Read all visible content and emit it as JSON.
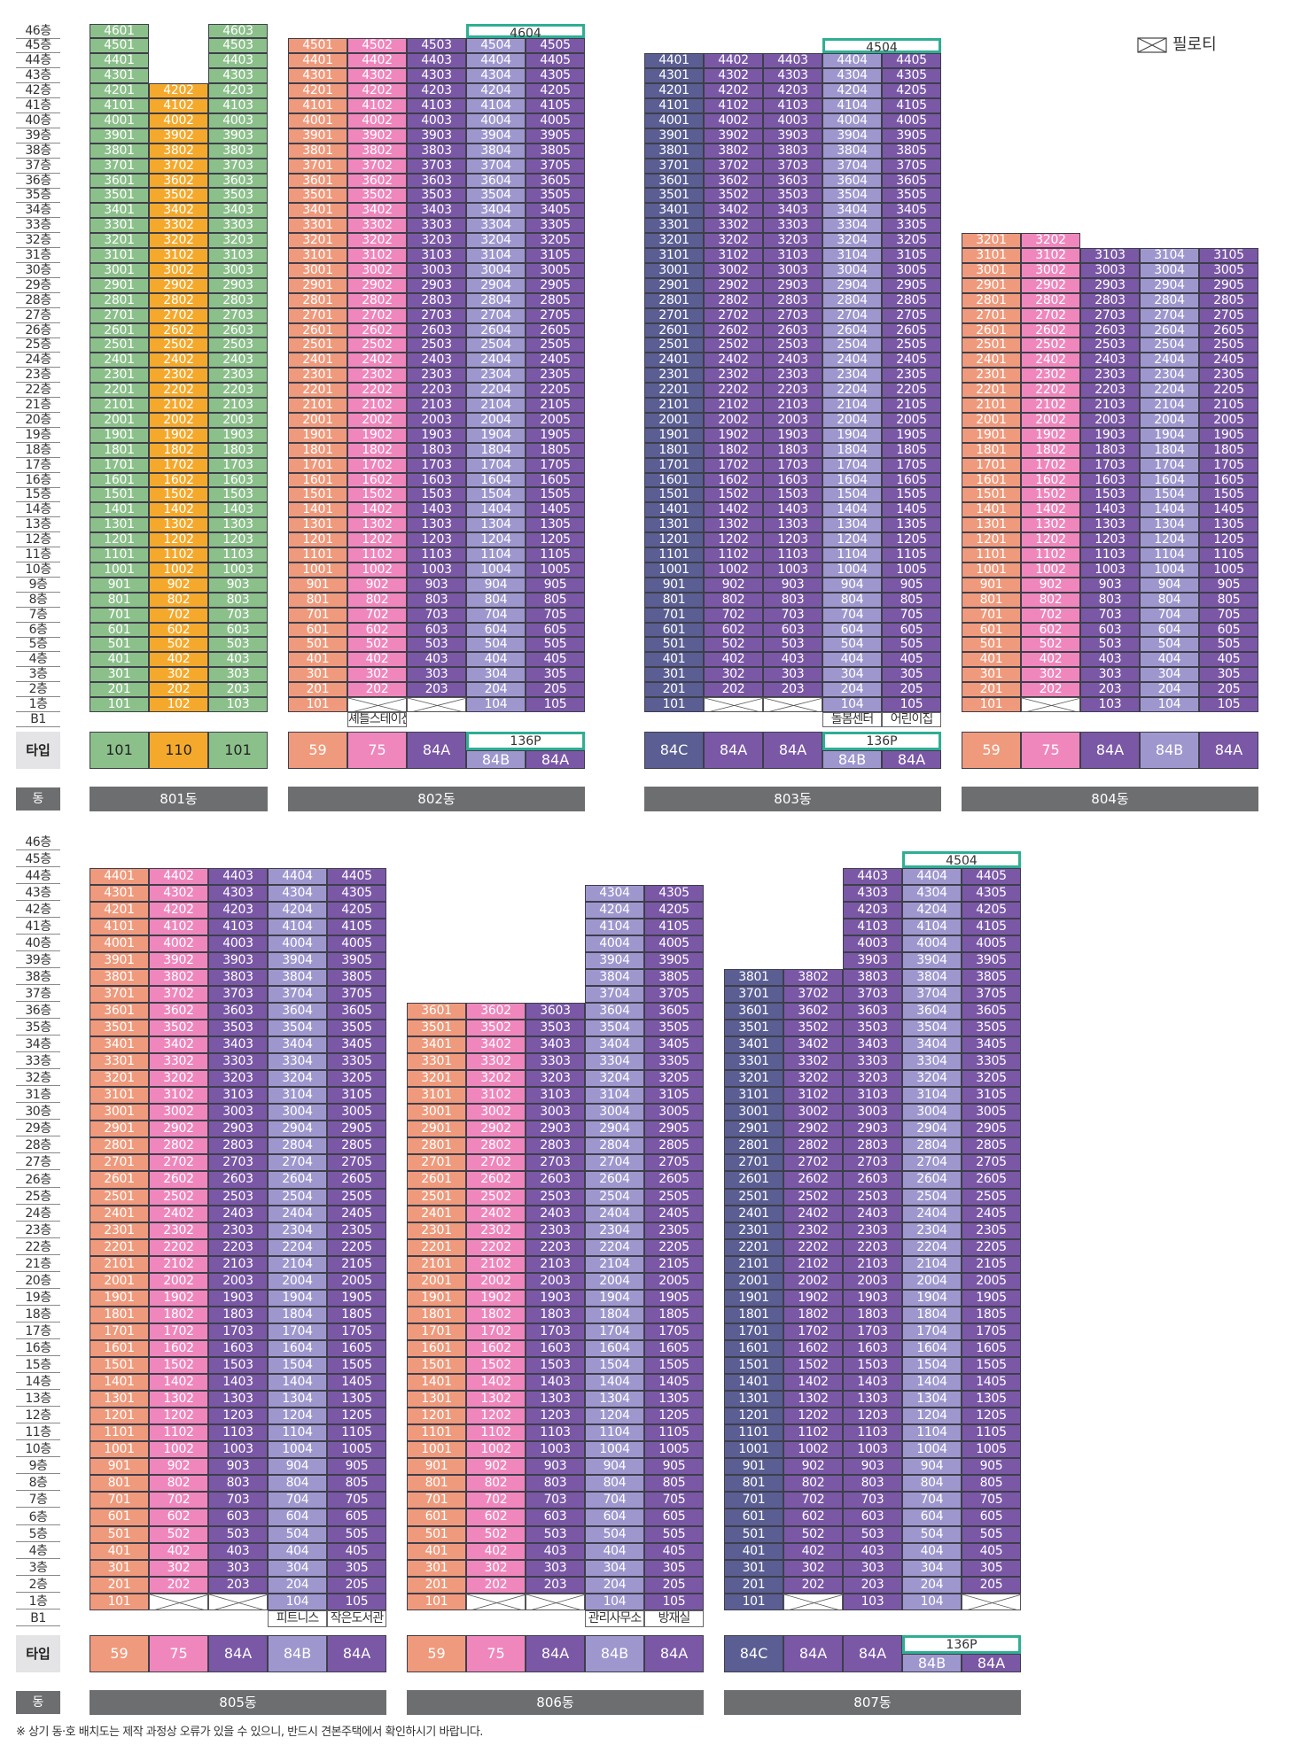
{
  "legend": {
    "pilotis_label": "필로티",
    "icon": "pilotis-x-icon"
  },
  "labels": {
    "type_row": "타입",
    "dong_row": "동",
    "b1": "B1",
    "floor_suffix": "층"
  },
  "footnote": "※ 상기 동·호 배치도는 제작 과정상 오류가 있을 수 있으니, 반드시 견본주택에서 확인하시기 바랍니다.",
  "colors": {
    "type_101": "#8cc08b",
    "type_110": "#f5a92c",
    "type_59": "#ef9a7c",
    "type_75": "#ef87bd",
    "type_84A": "#7a58a6",
    "type_84B": "#9e97ce",
    "type_84C": "#5a5e92",
    "unit_59": "#ef9a7c",
    "unit_75": "#ef87bd",
    "unit_84A": "#7a58a6",
    "unit_84B": "#9e97ce",
    "unit_84C": "#5a5e92",
    "accent_teal": "#2fae93",
    "dong_bar": "#6d6e70"
  },
  "buildings": [
    {
      "name": "801동",
      "section": 1,
      "columns": [
        {
          "type": "101",
          "line": 1,
          "top": 46,
          "empty_1f": false
        },
        {
          "type": "110",
          "line": 2,
          "top": 42,
          "empty_1f": false
        },
        {
          "type": "101",
          "line": 3,
          "top": 46,
          "empty_1f": false
        }
      ],
      "annotations": [],
      "penthouse": null
    },
    {
      "name": "802동",
      "section": 1,
      "columns": [
        {
          "type": "59",
          "line": 1,
          "top": 45,
          "empty_1f": false,
          "unit101": "101"
        },
        {
          "type": "75",
          "line": 2,
          "top": 45,
          "empty_1f": true
        },
        {
          "type": "84A",
          "line": 3,
          "top": 45,
          "empty_1f": true
        },
        {
          "type": "84B",
          "line": 4,
          "top": 45,
          "empty_1f": false
        },
        {
          "type": "84A",
          "line": 5,
          "top": 45,
          "empty_1f": false
        }
      ],
      "annotations": [
        {
          "text": "셰틀스테이션",
          "col": 1
        }
      ],
      "penthouse": {
        "label": "4604",
        "cols": [
          3,
          4
        ],
        "type_label": "136P"
      }
    },
    {
      "name": "803동",
      "section": 1,
      "columns": [
        {
          "type": "84C",
          "line": 1,
          "top": 44,
          "empty_1f": false
        },
        {
          "type": "84A",
          "line": 2,
          "top": 44,
          "empty_1f": true
        },
        {
          "type": "84A",
          "line": 3,
          "top": 44,
          "empty_1f": true
        },
        {
          "type": "84B",
          "line": 4,
          "top": 44,
          "empty_1f": false
        },
        {
          "type": "84A",
          "line": 5,
          "top": 44,
          "empty_1f": false
        }
      ],
      "annotations": [
        {
          "text": "돌봄센터",
          "col": 3
        },
        {
          "text": "어린이집",
          "col": 4
        }
      ],
      "penthouse": {
        "label": "4504",
        "cols": [
          3,
          4
        ],
        "type_label": "136P"
      }
    },
    {
      "name": "804동",
      "section": 1,
      "columns": [
        {
          "type": "59",
          "line": 1,
          "top": 32,
          "empty_1f": false
        },
        {
          "type": "75",
          "line": 2,
          "top": 32,
          "empty_1f": true
        },
        {
          "type": "84A",
          "line": 3,
          "top": 31,
          "empty_1f": false
        },
        {
          "type": "84B",
          "line": 4,
          "top": 31,
          "empty_1f": false
        },
        {
          "type": "84A",
          "line": 5,
          "top": 31,
          "empty_1f": false
        }
      ],
      "annotations": [],
      "penthouse": null
    },
    {
      "name": "805동",
      "section": 2,
      "columns": [
        {
          "type": "59",
          "line": 1,
          "top": 44,
          "empty_1f": false
        },
        {
          "type": "75",
          "line": 2,
          "top": 44,
          "empty_1f": true
        },
        {
          "type": "84A",
          "line": 3,
          "top": 44,
          "empty_1f": true
        },
        {
          "type": "84B",
          "line": 4,
          "top": 44,
          "empty_1f": false
        },
        {
          "type": "84A",
          "line": 5,
          "top": 44,
          "empty_1f": false
        }
      ],
      "annotations": [
        {
          "text": "피트니스",
          "col": 3
        },
        {
          "text": "작은도서관",
          "col": 4
        }
      ],
      "penthouse": null
    },
    {
      "name": "806동",
      "section": 2,
      "columns": [
        {
          "type": "59",
          "line": 1,
          "top": 36,
          "empty_1f": false
        },
        {
          "type": "75",
          "line": 2,
          "top": 36,
          "empty_1f": true
        },
        {
          "type": "84A",
          "line": 3,
          "top": 36,
          "empty_1f": true
        },
        {
          "type": "84B",
          "line": 4,
          "top": 43,
          "empty_1f": false
        },
        {
          "type": "84A",
          "line": 5,
          "top": 43,
          "empty_1f": false
        }
      ],
      "annotations": [
        {
          "text": "관리사무소",
          "col": 3
        },
        {
          "text": "방재실",
          "col": 4
        }
      ],
      "penthouse": null
    },
    {
      "name": "807동",
      "section": 2,
      "columns": [
        {
          "type": "84C",
          "line": 1,
          "top": 38,
          "empty_1f": false
        },
        {
          "type": "84A",
          "line": 2,
          "top": 38,
          "empty_1f": true
        },
        {
          "type": "84A",
          "line": 3,
          "top": 44,
          "empty_1f": false
        },
        {
          "type": "84B",
          "line": 4,
          "top": 44,
          "empty_1f": false
        },
        {
          "type": "84A",
          "line": 5,
          "top": 44,
          "empty_1f": true
        }
      ],
      "annotations": [],
      "penthouse": {
        "label": "4504",
        "cols": [
          3,
          4
        ],
        "type_label": "136P"
      }
    }
  ]
}
